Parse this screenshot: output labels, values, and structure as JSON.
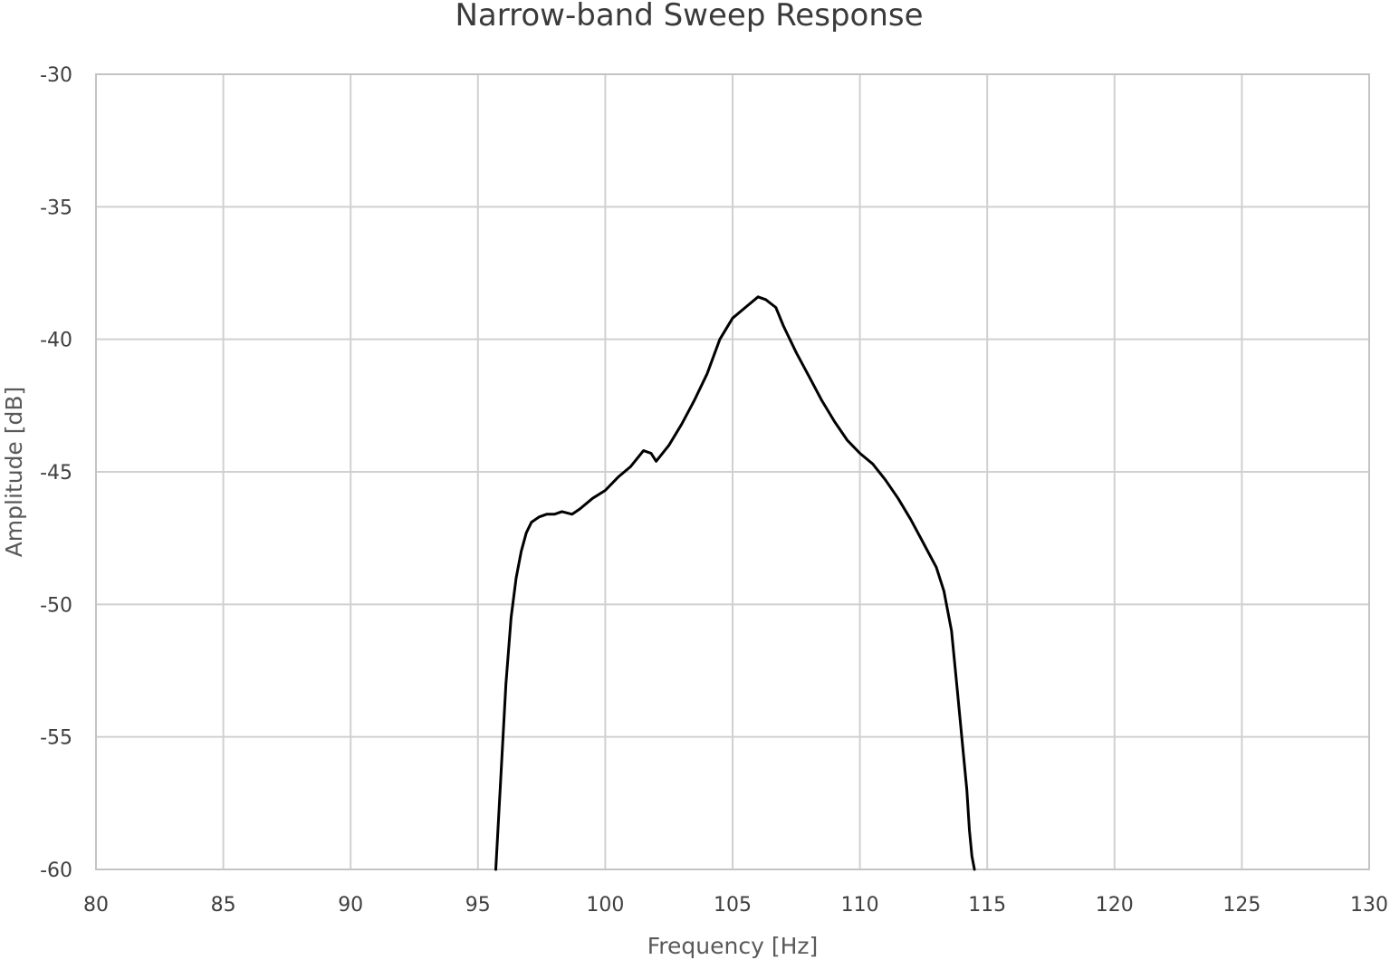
{
  "chart_data": {
    "type": "line",
    "title": "Narrow-band Sweep Response",
    "xlabel": "Frequency [Hz]",
    "ylabel": "Amplitude [dB]",
    "xlim": [
      80,
      130
    ],
    "ylim": [
      -60,
      -30
    ],
    "x_ticks": [
      80,
      85,
      90,
      95,
      100,
      105,
      110,
      115,
      120,
      125,
      130
    ],
    "y_ticks": [
      -30,
      -35,
      -40,
      -45,
      -50,
      -55,
      -60
    ],
    "grid": true,
    "legend": "none",
    "series": [
      {
        "color": "#000000",
        "x": [
          95.7,
          95.9,
          96.1,
          96.3,
          96.5,
          96.7,
          96.9,
          97.1,
          97.4,
          97.7,
          98.0,
          98.3,
          98.7,
          99.0,
          99.5,
          100.0,
          100.5,
          101.0,
          101.5,
          101.8,
          102.0,
          102.5,
          103.0,
          103.5,
          104.0,
          104.5,
          105.0,
          105.5,
          106.0,
          106.3,
          106.7,
          107.0,
          107.5,
          108.0,
          108.5,
          109.0,
          109.5,
          110.0,
          110.5,
          111.0,
          111.5,
          112.0,
          112.5,
          113.0,
          113.3,
          113.6,
          113.8,
          114.0,
          114.2,
          114.3,
          114.4,
          114.5
        ],
        "y": [
          -60.0,
          -56.5,
          -53.0,
          -50.5,
          -49.0,
          -48.0,
          -47.3,
          -46.9,
          -46.7,
          -46.6,
          -46.6,
          -46.5,
          -46.6,
          -46.4,
          -46.0,
          -45.7,
          -45.2,
          -44.8,
          -44.2,
          -44.3,
          -44.6,
          -44.0,
          -43.2,
          -42.3,
          -41.3,
          -40.0,
          -39.2,
          -38.8,
          -38.4,
          -38.5,
          -38.8,
          -39.5,
          -40.5,
          -41.4,
          -42.3,
          -43.1,
          -43.8,
          -44.3,
          -44.7,
          -45.3,
          -46.0,
          -46.8,
          -47.7,
          -48.6,
          -49.5,
          -51.0,
          -53.0,
          -55.0,
          -57.0,
          -58.5,
          -59.5,
          -60.0
        ]
      }
    ]
  }
}
